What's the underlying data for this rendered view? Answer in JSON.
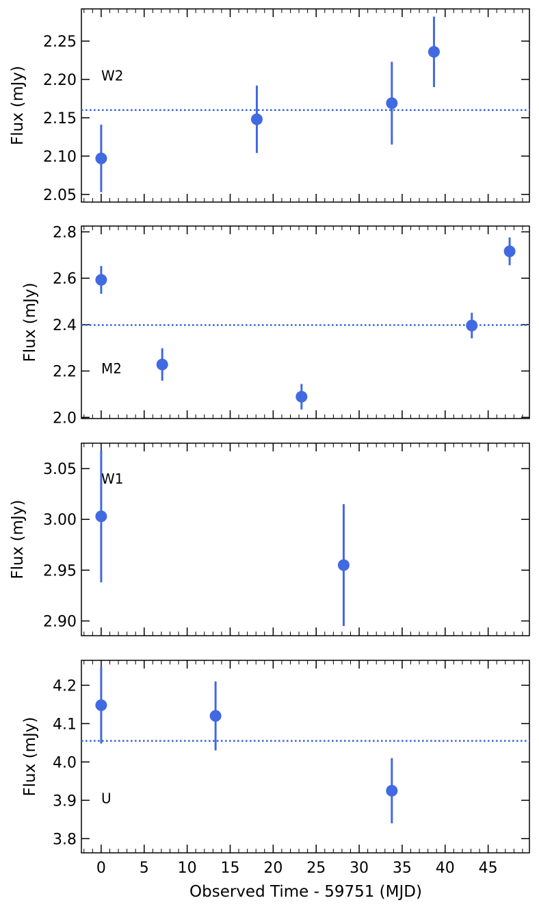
{
  "chart_data": {
    "type": "scatter",
    "layout": "4 stacked panels sharing x axis",
    "xlabel": "Observed Time - 59751 (MJD)",
    "xlim": [
      -2.3,
      49.8
    ],
    "xticks": [
      0,
      5,
      10,
      15,
      20,
      25,
      30,
      35,
      40,
      45
    ],
    "color": "#4169e1",
    "marker": "filled circle with vertical error bars",
    "reference_line": "dotted horizontal line",
    "panels": [
      {
        "band": "W2",
        "ylabel": "Flux (mJy)",
        "ylim": [
          2.04,
          2.292
        ],
        "yticks": [
          2.05,
          2.1,
          2.15,
          2.2,
          2.25
        ],
        "ytick_labels": [
          "2.05",
          "2.10",
          "2.15",
          "2.20",
          "2.25"
        ],
        "reference_value": 2.16,
        "label_pos": [
          0,
          2.205
        ],
        "points": [
          {
            "x": 0.0,
            "y": 2.097,
            "err": 0.044
          },
          {
            "x": 18.1,
            "y": 2.148,
            "err": 0.044
          },
          {
            "x": 33.8,
            "y": 2.169,
            "err": 0.054
          },
          {
            "x": 38.7,
            "y": 2.236,
            "err": 0.046
          }
        ]
      },
      {
        "band": "M2",
        "ylabel": "Flux (mJy)",
        "ylim": [
          1.995,
          2.825
        ],
        "yticks": [
          2.0,
          2.2,
          2.4,
          2.6,
          2.8
        ],
        "ytick_labels": [
          "2.0",
          "2.2",
          "2.4",
          "2.6",
          "2.8"
        ],
        "reference_value": 2.398,
        "label_pos": [
          0,
          2.21
        ],
        "points": [
          {
            "x": 0.0,
            "y": 2.593,
            "err": 0.06
          },
          {
            "x": 7.1,
            "y": 2.228,
            "err": 0.07
          },
          {
            "x": 23.3,
            "y": 2.089,
            "err": 0.055
          },
          {
            "x": 43.1,
            "y": 2.396,
            "err": 0.055
          },
          {
            "x": 47.5,
            "y": 2.716,
            "err": 0.06
          }
        ]
      },
      {
        "band": "W1",
        "ylabel": "Flux (mJy)",
        "ylim": [
          2.8855,
          3.075
        ],
        "yticks": [
          2.9,
          2.95,
          3.0,
          3.05
        ],
        "ytick_labels": [
          "2.90",
          "2.95",
          "3.00",
          "3.05"
        ],
        "reference_value": null,
        "label_pos": [
          0,
          3.04
        ],
        "points": [
          {
            "x": 0.0,
            "y": 3.003,
            "err": 0.065
          },
          {
            "x": 28.2,
            "y": 2.955,
            "err": 0.06
          }
        ]
      },
      {
        "band": "U",
        "ylabel": "Flux (mJy)",
        "ylim": [
          3.763,
          4.265
        ],
        "yticks": [
          3.8,
          3.9,
          4.0,
          4.1,
          4.2
        ],
        "ytick_labels": [
          "3.8",
          "3.9",
          "4.0",
          "4.1",
          "4.2"
        ],
        "reference_value": 4.055,
        "label_pos": [
          0,
          3.905
        ],
        "points": [
          {
            "x": 0.0,
            "y": 4.148,
            "err": 0.1
          },
          {
            "x": 13.3,
            "y": 4.12,
            "err": 0.09
          },
          {
            "x": 33.8,
            "y": 3.925,
            "err": 0.085
          }
        ]
      }
    ]
  }
}
